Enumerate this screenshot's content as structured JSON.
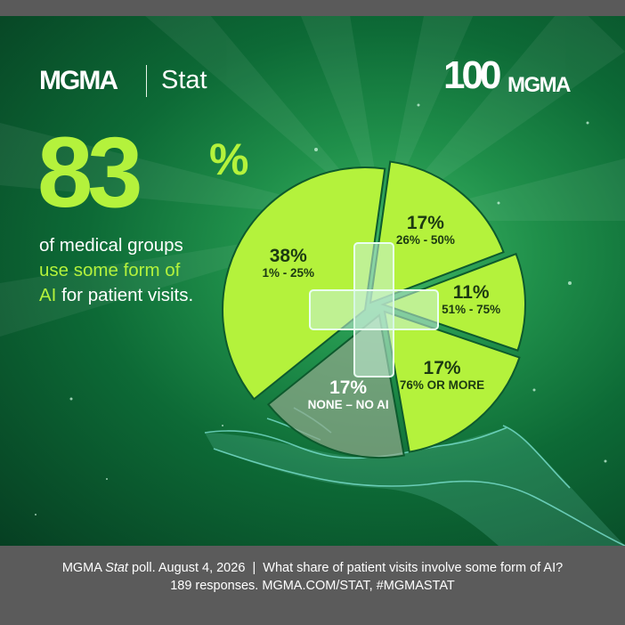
{
  "brand": {
    "left_logo": "MGMA",
    "stat_label": "Stat",
    "right_logo_number": "100",
    "right_logo_text": "MGMA"
  },
  "headline": {
    "big_number": "83",
    "big_sign": "%",
    "line1": "of medical groups",
    "line2_highlight": "use some form of",
    "line3_start": "AI",
    "line3_end": "for patient visits."
  },
  "colors": {
    "accent": "#b4f23c",
    "background_green": "#1f8f4a",
    "none_slice": "#8fa88a",
    "footer_gray": "#5b5b5b"
  },
  "chart_data": {
    "type": "pie",
    "title": "",
    "slices": [
      {
        "label": "26% - 50%",
        "value": 17,
        "value_label": "17%"
      },
      {
        "label": "51% - 75%",
        "value": 11,
        "value_label": "11%"
      },
      {
        "label": "76% OR MORE",
        "value": 17,
        "value_label": "17%"
      },
      {
        "label": "NONE – NO AI",
        "value": 17,
        "value_label": "17%"
      },
      {
        "label": "1% - 25%",
        "value": 38,
        "value_label": "38%"
      }
    ]
  },
  "footer": {
    "poll_source": "MGMA",
    "poll_stat": "Stat",
    "poll_date": "poll. August 4, 2026",
    "separator": "|",
    "question": "What share of patient visits involve some form of AI?",
    "line2": "189 responses. MGMA.COM/STAT, #MGMASTAT"
  }
}
